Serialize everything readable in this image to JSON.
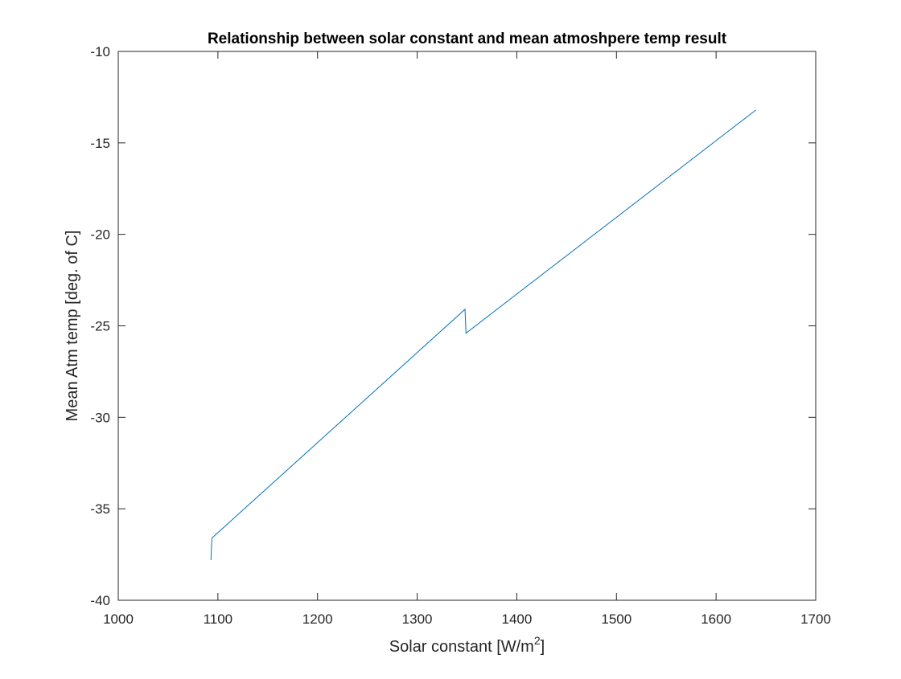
{
  "chart_data": {
    "type": "line",
    "title": "Relationship between solar constant and mean atmoshpere temp result",
    "xlabel": "Solar constant [W/m",
    "xlabel_superscript": "2",
    "xlabel_suffix": "]",
    "ylabel": "Mean Atm temp [deg. of C]",
    "xlim": [
      1000,
      1700
    ],
    "ylim": [
      -40,
      -10
    ],
    "xticks": [
      1000,
      1100,
      1200,
      1300,
      1400,
      1500,
      1600,
      1700
    ],
    "yticks": [
      -10,
      -15,
      -20,
      -25,
      -30,
      -35,
      -40
    ],
    "grid": false,
    "box": true,
    "series": [
      {
        "color": "#0072BD",
        "x": [
          1093,
          1094,
          1348,
          1349,
          1640
        ],
        "y": [
          -37.8,
          -36.6,
          -24.1,
          -25.4,
          -13.2
        ]
      }
    ]
  }
}
